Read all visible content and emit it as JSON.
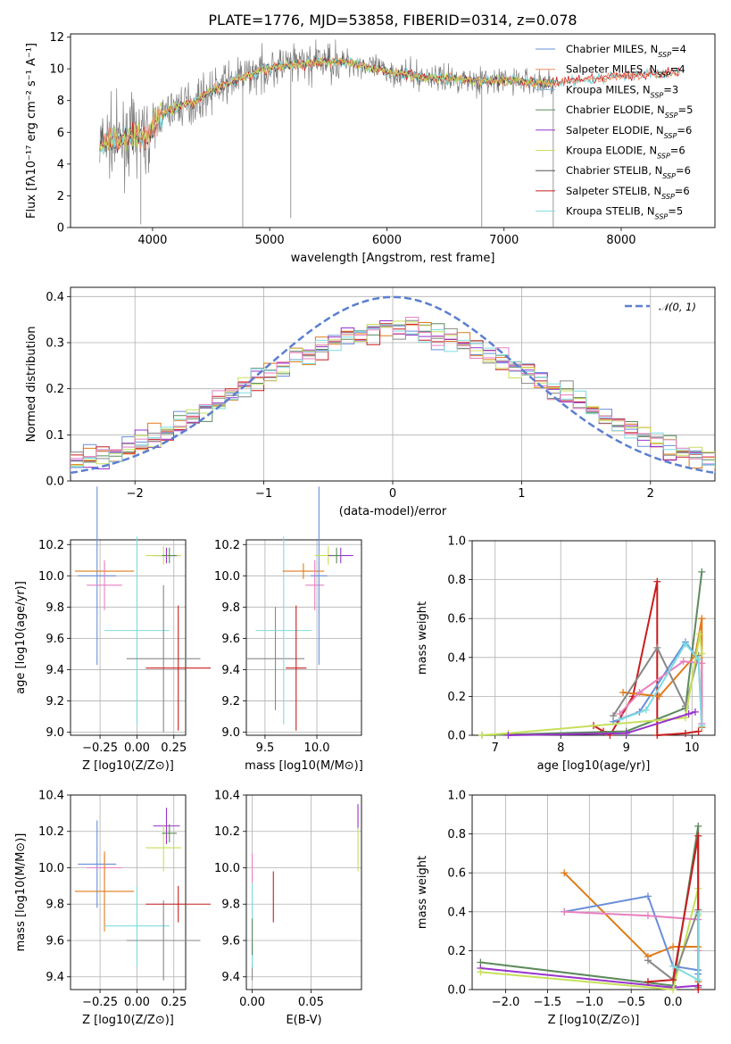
{
  "title": "PLATE=1776, MJD=53858, FIBERID=0314, z=0.078",
  "colors": {
    "cb_miles": "#6a8fd8",
    "sp_miles": "#ef8a62",
    "kr_miles": "#7ab7d8",
    "cb_elodie": "#5c8a5c",
    "sp_elodie": "#9933cc",
    "kr_elodie": "#c6e05a",
    "cb_stelib": "#555555",
    "sp_stelib": "#c81e1e",
    "kr_stelib": "#7edbe0",
    "orange": "#e07b1a",
    "pink": "#e87fbf",
    "green": "#5c8a5c",
    "yellow": "#c6e05a",
    "blue": "#6a8fd8",
    "cyan": "#7edbe0",
    "gray": "#888888",
    "normal": "#5b7fd0"
  },
  "chart_data": [
    {
      "type": "line",
      "panel": "spectrum",
      "xlabel": "wavelength [Angstrom, rest frame]",
      "ylabel": "Flux [fλ10⁻¹⁷ erg cm⁻² s⁻¹ A⁻¹]",
      "xlim": [
        3300,
        8800
      ],
      "ylim": [
        0,
        12.2
      ],
      "xticks": [
        4000,
        5000,
        6000,
        7000,
        8000
      ],
      "yticks": [
        0,
        2,
        4,
        6,
        8,
        10,
        12
      ],
      "legend_position": "top-right",
      "legend": [
        {
          "name": "Chabrier MILES, N",
          "sub": "SSP",
          "suffix": "=4",
          "color": "cb_miles"
        },
        {
          "name": "Salpeter MILES, N",
          "sub": "SSP",
          "suffix": "=4",
          "color": "sp_miles"
        },
        {
          "name": "Kroupa MILES, N",
          "sub": "SSP",
          "suffix": "=3",
          "color": "kr_miles"
        },
        {
          "name": "Chabrier ELODIE, N",
          "sub": "SSP",
          "suffix": "=5",
          "color": "cb_elodie"
        },
        {
          "name": "Salpeter ELODIE, N",
          "sub": "SSP",
          "suffix": "=6",
          "color": "sp_elodie"
        },
        {
          "name": "Kroupa ELODIE, N",
          "sub": "SSP",
          "suffix": "=6",
          "color": "kr_elodie"
        },
        {
          "name": "Chabrier STELIB, N",
          "sub": "SSP",
          "suffix": "=6",
          "color": "cb_stelib"
        },
        {
          "name": "Salpeter STELIB, N",
          "sub": "SSP",
          "suffix": "=6",
          "color": "sp_stelib"
        },
        {
          "name": "Kroupa STELIB, N",
          "sub": "SSP",
          "suffix": "=5",
          "color": "kr_stelib"
        }
      ],
      "model_continuum": {
        "x": [
          3550,
          3650,
          3750,
          3850,
          3950,
          4050,
          4200,
          4350,
          4500,
          4700,
          4900,
          5100,
          5300,
          5500,
          5700,
          5900,
          6100,
          6300,
          6500,
          6700,
          6900,
          7100,
          7300,
          7500,
          7700,
          7900,
          8100,
          8300,
          8500
        ],
        "y": [
          5.2,
          5.6,
          5.4,
          5.9,
          5.6,
          7.0,
          7.6,
          7.9,
          8.6,
          9.3,
          9.8,
          10.2,
          10.3,
          10.5,
          10.4,
          10.0,
          9.7,
          9.5,
          9.4,
          9.3,
          9.2,
          9.3,
          9.1,
          9.2,
          9.3,
          9.5,
          9.6,
          9.7,
          9.8
        ]
      }
    },
    {
      "type": "bar",
      "panel": "residual-histogram",
      "xlabel": "(data-model)/error",
      "ylabel": "Normed distribution",
      "xlim": [
        -2.5,
        2.5
      ],
      "ylim": [
        0,
        0.42
      ],
      "xticks": [
        -2,
        -1,
        0,
        1,
        2
      ],
      "yticks": [
        0.0,
        0.1,
        0.2,
        0.3,
        0.4
      ],
      "legend_position": "top-right",
      "normal_label": "𝒩(0, 1)"
    },
    {
      "type": "scatter",
      "panel": "age-vs-Z",
      "xlabel": "Z [log10(Z/Z⊙)]",
      "ylabel": "age  [log10(age/yr)]",
      "xlim": [
        -0.45,
        0.33
      ],
      "ylim": [
        8.98,
        10.23
      ],
      "xticks": [
        -0.25,
        0.0,
        0.25
      ],
      "yticks": [
        9.0,
        9.2,
        9.4,
        9.6,
        9.8,
        10.0,
        10.2
      ],
      "points": [
        {
          "color": "blue",
          "x": -0.27,
          "xerr": 0.13,
          "y": 10.0,
          "yerr": 0.57
        },
        {
          "color": "orange",
          "x": -0.22,
          "xerr": 0.2,
          "y": 10.03,
          "yerr": 0.05
        },
        {
          "color": "pink",
          "x": -0.22,
          "xerr": 0.12,
          "y": 9.94,
          "yerr": 0.16
        },
        {
          "color": "cyan",
          "x": 0.0,
          "xerr": 0.22,
          "y": 9.65,
          "yerr": 0.6
        },
        {
          "color": "gray",
          "x": 0.18,
          "xerr": 0.25,
          "y": 9.47,
          "yerr": 0.47
        },
        {
          "color": "sp_stelib",
          "x": 0.28,
          "xerr": 0.22,
          "y": 9.41,
          "yerr": 0.4
        },
        {
          "color": "sp_elodie",
          "x": 0.2,
          "xerr": 0.09,
          "y": 10.13,
          "yerr": 0.05
        },
        {
          "color": "yellow",
          "x": 0.18,
          "xerr": 0.12,
          "y": 10.13,
          "yerr": 0.06
        },
        {
          "color": "green",
          "x": 0.22,
          "xerr": 0.05,
          "y": 10.13,
          "yerr": 0.05
        }
      ]
    },
    {
      "type": "scatter",
      "panel": "age-vs-mass",
      "xlabel": "mass [log10(M/M⊙)]",
      "ylabel": "",
      "xlim": [
        9.32,
        10.43
      ],
      "ylim": [
        8.98,
        10.23
      ],
      "xticks": [
        9.5,
        10.0
      ],
      "yticks": [
        9.0,
        9.2,
        9.4,
        9.6,
        9.8,
        10.0,
        10.2
      ],
      "points": [
        {
          "color": "gray",
          "x": 9.6,
          "xerr": 0.28,
          "y": 9.47,
          "yerr": 0.33
        },
        {
          "color": "cyan",
          "x": 9.68,
          "xerr": 0.27,
          "y": 9.65,
          "yerr": 0.6
        },
        {
          "color": "sp_stelib",
          "x": 9.8,
          "xerr": 0.1,
          "y": 9.41,
          "yerr": 0.4
        },
        {
          "color": "orange",
          "x": 9.87,
          "xerr": 0.2,
          "y": 10.03,
          "yerr": 0.05
        },
        {
          "color": "pink",
          "x": 9.98,
          "xerr": 0.09,
          "y": 9.94,
          "yerr": 0.16
        },
        {
          "color": "blue",
          "x": 10.02,
          "xerr": 0.08,
          "y": 10.0,
          "yerr": 0.57
        },
        {
          "color": "yellow",
          "x": 10.11,
          "xerr": 0.13,
          "y": 10.13,
          "yerr": 0.06
        },
        {
          "color": "sp_elodie",
          "x": 10.23,
          "xerr": 0.12,
          "y": 10.13,
          "yerr": 0.05
        },
        {
          "color": "green",
          "x": 10.19,
          "xerr": 0.05,
          "y": 10.13,
          "yerr": 0.05
        }
      ]
    },
    {
      "type": "line",
      "panel": "mass-weight-vs-age",
      "xlabel": "age  [log10(age/yr)]",
      "ylabel": "mass weight",
      "xlim": [
        6.65,
        10.35
      ],
      "ylim": [
        0,
        1.0
      ],
      "xticks": [
        7,
        8,
        9,
        10
      ],
      "yticks": [
        0.0,
        0.2,
        0.4,
        0.6,
        0.8,
        1.0
      ],
      "series": [
        {
          "color": "sp_stelib",
          "x": [
            8.5,
            8.65,
            8.75,
            9.1,
            9.47,
            9.47,
            9.9,
            10.1
          ],
          "y": [
            0.05,
            0.02,
            0.0,
            0.2,
            0.79,
            0.0,
            0.01,
            0.02
          ]
        },
        {
          "color": "green",
          "x": [
            6.8,
            9.0,
            9.9,
            10.15
          ],
          "y": [
            0.0,
            0.02,
            0.14,
            0.84
          ]
        },
        {
          "color": "blue",
          "x": [
            8.8,
            9.2,
            9.9,
            10.1,
            10.15
          ],
          "y": [
            0.07,
            0.12,
            0.48,
            0.39,
            0.04
          ]
        },
        {
          "color": "orange",
          "x": [
            8.95,
            9.5,
            10.05,
            10.15,
            10.15
          ],
          "y": [
            0.22,
            0.2,
            0.41,
            0.6,
            0.04
          ]
        },
        {
          "color": "gray",
          "x": [
            8.8,
            9.47,
            9.9,
            10.1
          ],
          "y": [
            0.1,
            0.45,
            0.15,
            0.41
          ]
        },
        {
          "color": "pink",
          "x": [
            8.9,
            9.2,
            9.87,
            10.15,
            10.15
          ],
          "y": [
            0.11,
            0.22,
            0.38,
            0.37,
            0.06
          ]
        },
        {
          "color": "yellow",
          "x": [
            6.8,
            7.2,
            9.9,
            10.12,
            10.15
          ],
          "y": [
            0.0,
            0.01,
            0.09,
            0.52,
            0.42
          ]
        },
        {
          "color": "sp_elodie",
          "x": [
            7.2,
            9.0,
            9.95,
            10.05
          ],
          "y": [
            0.0,
            0.01,
            0.11,
            0.12
          ]
        },
        {
          "color": "cyan",
          "x": [
            8.9,
            9.3,
            9.9,
            10.1,
            10.15
          ],
          "y": [
            0.08,
            0.13,
            0.47,
            0.39,
            0.05
          ]
        }
      ]
    },
    {
      "type": "scatter",
      "panel": "mass-vs-Z",
      "xlabel": "Z [log10(Z/Z⊙)]",
      "ylabel": "mass [log10(M/M⊙)]",
      "xlim": [
        -0.45,
        0.33
      ],
      "ylim": [
        9.33,
        10.4
      ],
      "xticks": [
        -0.25,
        0.0,
        0.25
      ],
      "yticks": [
        9.4,
        9.6,
        9.8,
        10.0,
        10.2,
        10.4
      ],
      "points": [
        {
          "color": "blue",
          "x": -0.27,
          "xerr": 0.13,
          "y": 10.02,
          "yerr": 0.24
        },
        {
          "color": "pink",
          "x": -0.22,
          "xerr": 0.12,
          "y": 10.0,
          "yerr": 0.07
        },
        {
          "color": "orange",
          "x": -0.22,
          "xerr": 0.2,
          "y": 9.87,
          "yerr": 0.22
        },
        {
          "color": "cyan",
          "x": 0.0,
          "xerr": 0.22,
          "y": 9.68,
          "yerr": 0.22
        },
        {
          "color": "gray",
          "x": 0.18,
          "xerr": 0.25,
          "y": 9.6,
          "yerr": 0.22
        },
        {
          "color": "sp_stelib",
          "x": 0.28,
          "xerr": 0.22,
          "y": 9.8,
          "yerr": 0.1
        },
        {
          "color": "sp_elodie",
          "x": 0.2,
          "xerr": 0.09,
          "y": 10.23,
          "yerr": 0.1
        },
        {
          "color": "yellow",
          "x": 0.18,
          "xerr": 0.12,
          "y": 10.11,
          "yerr": 0.13
        },
        {
          "color": "green",
          "x": 0.22,
          "xerr": 0.05,
          "y": 10.19,
          "yerr": 0.05
        }
      ]
    },
    {
      "type": "scatter",
      "panel": "mass-vs-EBV",
      "xlabel": "E(B-V)",
      "ylabel": "",
      "xlim": [
        -0.005,
        0.093
      ],
      "ylim": [
        9.33,
        10.4
      ],
      "xticks": [
        0.0,
        0.05
      ],
      "yticks": [
        9.4,
        9.6,
        9.8,
        10.0,
        10.2,
        10.4
      ],
      "points": [
        {
          "color": "gray",
          "x": 0.0,
          "xerr": 0.0,
          "y": 9.48,
          "yerr": 0.1
        },
        {
          "color": "cyan",
          "x": 0.0,
          "xerr": 0.0,
          "y": 9.7,
          "yerr": 0.25
        },
        {
          "color": "pink",
          "x": 0.0,
          "xerr": 0.0,
          "y": 10.0,
          "yerr": 0.08
        },
        {
          "color": "green",
          "x": 0.0,
          "xerr": 0.0,
          "y": 9.62,
          "yerr": 0.1
        },
        {
          "color": "sp_stelib",
          "x": 0.018,
          "xerr": 0.0,
          "y": 9.84,
          "yerr": 0.14
        },
        {
          "color": "sp_elodie",
          "x": 0.09,
          "xerr": 0.0,
          "y": 10.28,
          "yerr": 0.07
        },
        {
          "color": "yellow",
          "x": 0.09,
          "xerr": 0.0,
          "y": 10.1,
          "yerr": 0.12
        }
      ]
    },
    {
      "type": "line",
      "panel": "mass-weight-vs-Z",
      "xlabel": "Z [log10(Z/Z⊙)]",
      "ylabel": "mass weight",
      "xlim": [
        -2.4,
        0.5
      ],
      "ylim": [
        0,
        1.0
      ],
      "xticks": [
        -2.0,
        -1.5,
        -1.0,
        -0.5,
        0.0
      ],
      "yticks": [
        0.0,
        0.2,
        0.4,
        0.6,
        0.8,
        1.0
      ],
      "series": [
        {
          "color": "green",
          "x": [
            -2.3,
            0.0,
            0.3,
            0.3
          ],
          "y": [
            0.14,
            0.02,
            0.84,
            0.02
          ]
        },
        {
          "color": "sp_elodie",
          "x": [
            -2.3,
            0.0,
            0.3
          ],
          "y": [
            0.11,
            0.01,
            0.02
          ]
        },
        {
          "color": "yellow",
          "x": [
            -2.3,
            0.0,
            0.3,
            0.3
          ],
          "y": [
            0.09,
            0.0,
            0.52,
            0.38
          ]
        },
        {
          "color": "orange",
          "x": [
            -1.3,
            -0.3,
            0.0,
            0.3,
            0.3
          ],
          "y": [
            0.6,
            0.17,
            0.22,
            0.22,
            0.04
          ]
        },
        {
          "color": "blue",
          "x": [
            -1.3,
            -0.3,
            0.0,
            0.3,
            0.3
          ],
          "y": [
            0.4,
            0.48,
            0.12,
            0.1,
            0.08
          ]
        },
        {
          "color": "pink",
          "x": [
            -1.3,
            -0.3,
            0.3,
            0.3
          ],
          "y": [
            0.4,
            0.38,
            0.36,
            0.2
          ]
        },
        {
          "color": "gray",
          "x": [
            -0.3,
            0.0,
            0.3,
            0.3
          ],
          "y": [
            0.15,
            0.05,
            0.41,
            0.01
          ]
        },
        {
          "color": "sp_stelib",
          "x": [
            -0.3,
            0.0,
            0.3,
            0.3
          ],
          "y": [
            0.04,
            0.05,
            0.79,
            0.0
          ]
        },
        {
          "color": "cyan",
          "x": [
            0.0,
            0.3,
            0.3
          ],
          "y": [
            0.12,
            0.05,
            0.39
          ]
        }
      ]
    }
  ]
}
